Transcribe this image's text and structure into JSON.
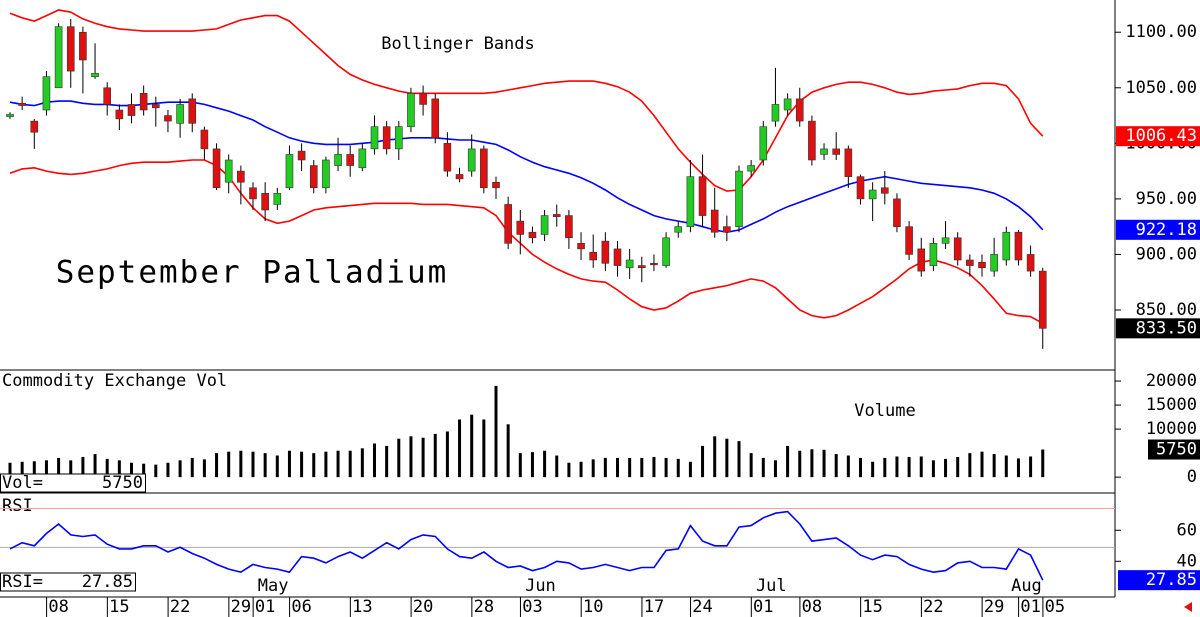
{
  "chart_data": [
    {
      "type": "candlestick",
      "title": "September Palladium",
      "annotation": "Bollinger Bands",
      "ylim": [
        796,
        1129
      ],
      "yticks": [
        {
          "value": 850,
          "label": "850.00"
        },
        {
          "value": 900,
          "label": "900.00"
        },
        {
          "value": 950,
          "label": "950.00"
        },
        {
          "value": 1000,
          "label": "1000.00"
        },
        {
          "value": 1050,
          "label": "1050.00"
        },
        {
          "value": 1100,
          "label": "1100.00"
        }
      ],
      "up_color": "#22cc22",
      "down_color": "#dd1111",
      "open": [
        1024,
        1036,
        1020,
        1030,
        1050,
        1105,
        1100,
        1060,
        1050,
        1030,
        1035,
        1045,
        1035,
        1025,
        1018,
        1040,
        1012,
        995,
        965,
        975,
        960,
        955,
        945,
        960,
        993,
        980,
        960,
        980,
        990,
        978,
        995,
        1015,
        995,
        1015,
        1045,
        1040,
        1000,
        972,
        975,
        995,
        965,
        945,
        930,
        920,
        918,
        936,
        935,
        910,
        902,
        912,
        905,
        888,
        890,
        892,
        890,
        920,
        925,
        970,
        940,
        925,
        925,
        975,
        985,
        1020,
        1030,
        1040,
        1020,
        990,
        995,
        995,
        970,
        950,
        960,
        950,
        925,
        905,
        890,
        910,
        915,
        895,
        893,
        885,
        895,
        920,
        900,
        885,
        null
      ],
      "high": [
        1028,
        1042,
        1022,
        1065,
        1108,
        1112,
        1105,
        1090,
        1055,
        1035,
        1045,
        1052,
        1042,
        1030,
        1040,
        1045,
        1015,
        1000,
        990,
        980,
        965,
        965,
        960,
        998,
        1000,
        985,
        988,
        1005,
        998,
        1000,
        1025,
        1020,
        1020,
        1050,
        1052,
        1045,
        1010,
        978,
        1008,
        998,
        970,
        952,
        940,
        925,
        940,
        945,
        940,
        920,
        918,
        920,
        912,
        905,
        898,
        900,
        920,
        930,
        985,
        990,
        960,
        935,
        980,
        985,
        1020,
        1068,
        1045,
        1050,
        1025,
        1000,
        1010,
        998,
        972,
        965,
        975,
        955,
        930,
        915,
        915,
        930,
        920,
        900,
        900,
        915,
        925,
        922,
        908,
        888,
        null
      ],
      "low": [
        1022,
        1030,
        995,
        1025,
        1050,
        1050,
        1045,
        1058,
        1025,
        1012,
        1018,
        1025,
        1015,
        1010,
        1005,
        1010,
        985,
        958,
        955,
        945,
        940,
        930,
        940,
        958,
        975,
        955,
        955,
        975,
        970,
        975,
        990,
        990,
        985,
        1010,
        1025,
        1000,
        970,
        965,
        970,
        955,
        950,
        905,
        900,
        910,
        912,
        925,
        905,
        895,
        888,
        885,
        880,
        878,
        875,
        885,
        888,
        915,
        920,
        925,
        915,
        912,
        920,
        970,
        980,
        1015,
        1025,
        1015,
        980,
        985,
        985,
        960,
        945,
        930,
        945,
        920,
        895,
        880,
        885,
        905,
        890,
        880,
        880,
        880,
        890,
        890,
        880,
        815,
        null
      ],
      "close": [
        1026,
        1034,
        1010,
        1060,
        1105,
        1065,
        1075,
        1063,
        1035,
        1022,
        1025,
        1030,
        1032,
        1020,
        1035,
        1018,
        995,
        960,
        985,
        965,
        950,
        940,
        955,
        990,
        985,
        960,
        985,
        990,
        980,
        995,
        1015,
        995,
        1015,
        1045,
        1035,
        1005,
        975,
        968,
        995,
        960,
        960,
        910,
        918,
        915,
        935,
        934,
        915,
        905,
        895,
        892,
        890,
        895,
        888,
        891,
        915,
        925,
        970,
        935,
        920,
        920,
        975,
        980,
        1015,
        1035,
        1040,
        1020,
        985,
        995,
        990,
        970,
        950,
        958,
        955,
        925,
        900,
        885,
        910,
        915,
        895,
        890,
        888,
        900,
        920,
        895,
        885,
        833.5,
        null
      ],
      "close_label": "833.50",
      "bands": [
        {
          "color": "#ff0000",
          "label_color": "#ff0000",
          "values": [
            1117,
            1113,
            1110,
            1115,
            1120,
            1118,
            1112,
            1108,
            1105,
            1103,
            1102,
            1101,
            1101,
            1101,
            1101,
            1101,
            1102,
            1103,
            1107,
            1111,
            1113,
            1115,
            1115,
            1110,
            1100,
            1090,
            1080,
            1070,
            1062,
            1057,
            1053,
            1050,
            1047,
            1045,
            1045,
            1045,
            1045,
            1045,
            1045,
            1045,
            1046,
            1048,
            1050,
            1052,
            1054,
            1055,
            1056,
            1056,
            1056,
            1054,
            1051,
            1046,
            1038,
            1025,
            1010,
            995,
            983,
            972,
            962,
            957,
            958,
            970,
            985,
            1005,
            1025,
            1038,
            1046,
            1050,
            1053,
            1055,
            1055,
            1053,
            1050,
            1046,
            1044,
            1045,
            1047,
            1048,
            1049,
            1052,
            1054,
            1054,
            1052,
            1040,
            1018,
            1006.43,
            null
          ]
        },
        {
          "color": "#0000ff",
          "label_color": "#0000ff",
          "values": [
            1037,
            1035,
            1034,
            1037,
            1038,
            1038,
            1036,
            1035,
            1035,
            1034,
            1034,
            1035,
            1036,
            1037,
            1037,
            1037,
            1035,
            1032,
            1029,
            1025,
            1021,
            1015,
            1010,
            1005,
            1002,
            1000,
            999,
            999,
            999,
            1000,
            1001,
            1003,
            1004,
            1005,
            1005,
            1005,
            1004,
            1003,
            1003,
            1001,
            999,
            994,
            988,
            983,
            979,
            976,
            973,
            969,
            964,
            958,
            951,
            945,
            940,
            935,
            932,
            930,
            928,
            925,
            922,
            920,
            922,
            927,
            932,
            938,
            943,
            947,
            951,
            955,
            959,
            963,
            966,
            968,
            970,
            968,
            966,
            964,
            963,
            962,
            961,
            960,
            958,
            955,
            950,
            943,
            934,
            922.18,
            null
          ]
        },
        {
          "color": "#ff0000",
          "values": [
            973,
            977,
            978,
            975,
            973,
            972,
            973,
            975,
            977,
            980,
            982,
            983,
            983,
            983,
            984,
            985,
            985,
            980,
            970,
            955,
            942,
            932,
            928,
            930,
            935,
            940,
            942,
            943,
            944,
            945,
            946,
            946,
            946,
            946,
            945,
            945,
            945,
            944,
            943,
            942,
            935,
            920,
            910,
            900,
            893,
            887,
            882,
            878,
            876,
            875,
            868,
            860,
            853,
            850,
            852,
            858,
            865,
            868,
            870,
            872,
            875,
            878,
            876,
            870,
            860,
            850,
            845,
            843,
            845,
            850,
            856,
            862,
            870,
            878,
            887,
            893,
            895,
            892,
            888,
            882,
            872,
            860,
            847,
            845,
            844,
            838,
            null
          ]
        }
      ]
    },
    {
      "type": "bar",
      "title": "Commodity Exchange Vol",
      "annotation": "Volume",
      "value_caption": "Vol=",
      "ylim": [
        -3300,
        22300
      ],
      "yticks": [
        0,
        10000,
        15000,
        20000
      ],
      "color": "#000000",
      "values": [
        3000,
        3200,
        3300,
        3500,
        4000,
        3500,
        4200,
        4800,
        3800,
        3500,
        3000,
        2800,
        2600,
        3000,
        3500,
        4000,
        3700,
        5000,
        5300,
        5500,
        5300,
        5000,
        4500,
        5500,
        5300,
        5000,
        5300,
        5500,
        5500,
        6000,
        7000,
        6500,
        8000,
        8500,
        8200,
        9000,
        9500,
        12000,
        13000,
        12000,
        19000,
        11000,
        5000,
        5200,
        5500,
        4500,
        3000,
        3200,
        3700,
        4000,
        4000,
        4000,
        4000,
        4200,
        4000,
        3800,
        3200,
        6500,
        8500,
        8000,
        7500,
        5000,
        4000,
        3500,
        6500,
        5500,
        5800,
        5700,
        4800,
        4500,
        4000,
        3200,
        4000,
        4300,
        4200,
        4300,
        3500,
        3800,
        4200,
        5000,
        5300,
        4800,
        4500,
        3900,
        4300,
        5750,
        null
      ]
    },
    {
      "type": "line",
      "title": "RSI",
      "value_caption": "RSI=",
      "color": "#0000ff",
      "ylim": [
        17,
        84
      ],
      "yticks": [
        40,
        60
      ],
      "reference_lines": [
        {
          "value": 74,
          "color": "#f4a0a0"
        },
        {
          "value": 49,
          "color": "#aaaaaa"
        }
      ],
      "values": [
        48,
        52,
        50,
        58,
        64,
        57,
        56,
        57,
        51,
        48,
        48,
        50,
        50,
        46,
        49,
        45,
        42,
        38,
        35,
        33,
        38,
        36,
        35,
        33,
        43,
        42,
        39,
        43,
        46,
        42,
        47,
        52,
        48,
        54,
        57,
        56,
        48,
        43,
        42,
        46,
        40,
        36,
        37,
        34,
        36,
        40,
        39,
        35,
        36,
        38,
        36,
        34,
        36,
        36,
        47,
        48,
        63,
        53,
        50,
        50,
        62,
        63,
        68,
        71,
        72,
        64,
        53,
        54,
        55,
        50,
        44,
        41,
        44,
        43,
        38,
        35,
        33,
        34,
        39,
        40,
        36,
        36,
        35,
        48,
        44,
        27.85,
        null
      ],
      "categories": [
        null,
        null,
        null,
        null,
        "08",
        null,
        null,
        null,
        null,
        "15",
        null,
        null,
        null,
        null,
        "22",
        null,
        null,
        null,
        null,
        "29",
        null,
        "01",
        null,
        null,
        "06",
        null,
        null,
        null,
        null,
        "13",
        null,
        null,
        null,
        null,
        "20",
        null,
        null,
        null,
        null,
        "28",
        null,
        null,
        null,
        "03",
        null,
        null,
        null,
        null,
        "10",
        null,
        null,
        null,
        null,
        "17",
        null,
        null,
        null,
        "24",
        null,
        null,
        null,
        null,
        "01",
        null,
        null,
        null,
        "08",
        null,
        null,
        null,
        null,
        "15",
        null,
        null,
        null,
        null,
        "22",
        null,
        null,
        null,
        null,
        "29",
        null,
        null,
        "01",
        null,
        "05"
      ],
      "month_categories": [
        null,
        null,
        null,
        null,
        null,
        null,
        null,
        null,
        null,
        null,
        null,
        null,
        null,
        null,
        null,
        null,
        null,
        null,
        null,
        null,
        null,
        "May",
        null,
        null,
        null,
        null,
        null,
        null,
        null,
        null,
        null,
        null,
        null,
        null,
        null,
        null,
        null,
        null,
        null,
        null,
        null,
        null,
        null,
        "Jun",
        null,
        null,
        null,
        null,
        null,
        null,
        null,
        null,
        null,
        null,
        null,
        null,
        null,
        null,
        null,
        null,
        null,
        null,
        "Jul",
        null,
        null,
        null,
        null,
        null,
        null,
        null,
        null,
        null,
        null,
        null,
        null,
        null,
        null,
        null,
        null,
        null,
        null,
        null,
        null,
        "Aug",
        null,
        null
      ]
    }
  ]
}
